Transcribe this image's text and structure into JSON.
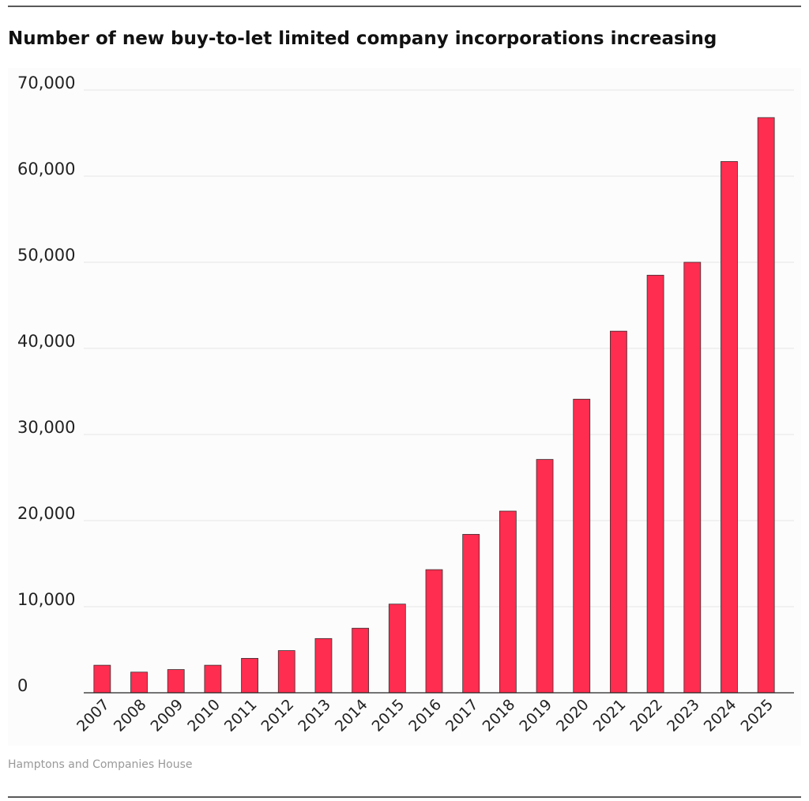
{
  "chart_data": {
    "type": "bar",
    "title": "Number of new buy-to-let limited company incorporations increasing",
    "source": "Hamptons and Companies House",
    "categories": [
      "2007",
      "2008",
      "2009",
      "2010",
      "2011",
      "2012",
      "2013",
      "2014",
      "2015",
      "2016",
      "2017",
      "2018",
      "2019",
      "2020",
      "2021",
      "2022",
      "2023",
      "2024",
      "2025"
    ],
    "values": [
      3200,
      2400,
      2700,
      3200,
      4000,
      4900,
      6300,
      7500,
      10300,
      14300,
      18400,
      21100,
      27100,
      34100,
      42000,
      48500,
      50000,
      61700,
      66800
    ],
    "color": "#ff2d4f",
    "ylim": [
      0,
      70000
    ],
    "yticks": [
      0,
      {
        "value": 10000,
        "label": "10,000"
      },
      {
        "value": 20000,
        "label": "20,000"
      },
      {
        "value": 30000,
        "label": "30,000"
      },
      {
        "value": 40000,
        "label": "40,000"
      },
      {
        "value": 50000,
        "label": "50,000"
      },
      {
        "value": 60000,
        "label": "60,000"
      },
      {
        "value": 70000,
        "label": "70,000"
      }
    ],
    "grid": true
  }
}
